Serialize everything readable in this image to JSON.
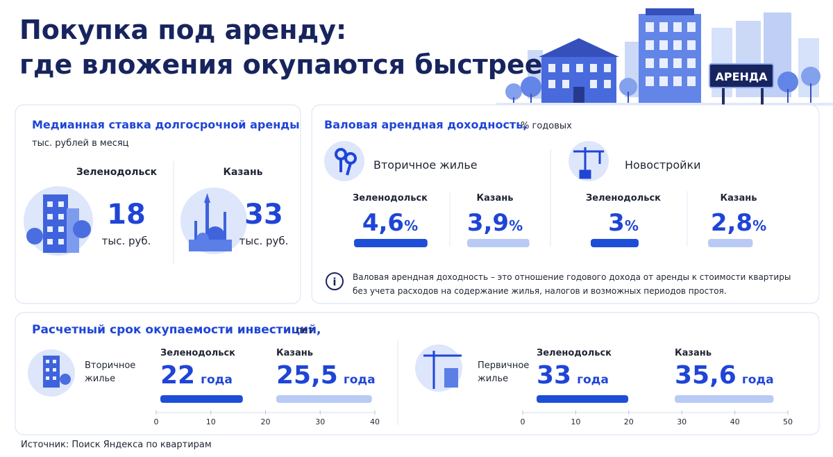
{
  "header": {
    "title_line1": "Покупка под аренду:",
    "title_line2": "где вложения окупаются быстрее",
    "badge": "АРЕНДА"
  },
  "rent": {
    "title": "Медианная ставка долгосрочной аренды",
    "subtitle": "тыс. рублей в месяц",
    "cities": [
      {
        "name": "Зеленодольск",
        "value": "18",
        "unit": "тыс. руб."
      },
      {
        "name": "Казань",
        "value": "33",
        "unit": "тыс. руб."
      }
    ]
  },
  "yield": {
    "title": "Валовая арендная доходность,",
    "unit": "% годовых",
    "groups": [
      {
        "label": "Вторичное жилье",
        "items": [
          {
            "city": "Зеленодольск",
            "value": 4.6,
            "value_label": "4,6",
            "suffix": "%"
          },
          {
            "city": "Казань",
            "value": 3.9,
            "value_label": "3,9",
            "suffix": "%"
          }
        ]
      },
      {
        "label": "Новостройки",
        "items": [
          {
            "city": "Зеленодольск",
            "value": 3,
            "value_label": "3",
            "suffix": "%"
          },
          {
            "city": "Казань",
            "value": 2.8,
            "value_label": "2,8",
            "suffix": "%"
          }
        ]
      }
    ],
    "note_line1": "Валовая арендная доходность – это отношение годового дохода от аренды к стоимости квартиры",
    "note_line2": "без учета расходов на содержание жилья, налогов и возможных периодов простоя."
  },
  "payback": {
    "title": "Расчетный срок окупаемости инвестиций,",
    "unit": "лет",
    "groups": [
      {
        "label_line1": "Вторичное",
        "label_line2": "жилье",
        "ticks": [
          0,
          10,
          20,
          30,
          40
        ],
        "items": [
          {
            "city": "Зеленодольск",
            "value": 22,
            "value_label": "22",
            "suffix": "года"
          },
          {
            "city": "Казань",
            "value": 25.5,
            "value_label": "25,5",
            "suffix": "года"
          }
        ]
      },
      {
        "label_line1": "Первичное",
        "label_line2": "жилье",
        "ticks": [
          0,
          10,
          20,
          30,
          40,
          50
        ],
        "items": [
          {
            "city": "Зеленодольск",
            "value": 33,
            "value_label": "33",
            "suffix": "года"
          },
          {
            "city": "Казань",
            "value": 35.6,
            "value_label": "35,6",
            "suffix": "года"
          }
        ]
      }
    ]
  },
  "source": "Источник: Поиск Яндекса по квартирам"
}
